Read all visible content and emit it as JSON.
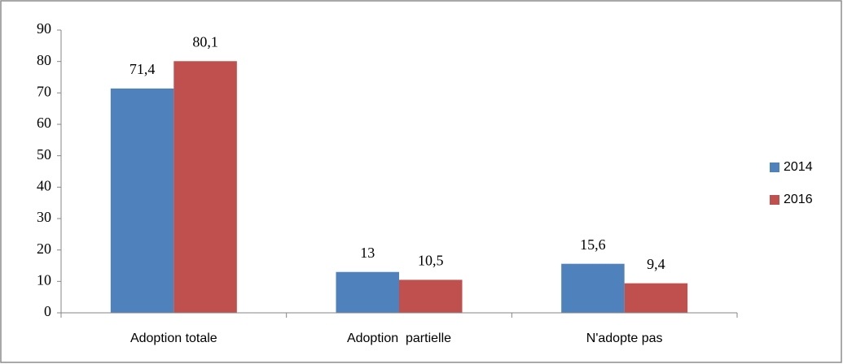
{
  "chart_data": {
    "type": "bar",
    "categories": [
      "Adoption totale",
      "Adoption  partielle",
      "N'adopte pas"
    ],
    "series": [
      {
        "name": "2014",
        "color": "#4f81bd",
        "values": [
          71.4,
          13,
          15.6
        ],
        "value_labels": [
          "71,4",
          "13",
          "15,6"
        ]
      },
      {
        "name": "2016",
        "color": "#c0504d",
        "values": [
          80.1,
          10.5,
          9.4
        ],
        "value_labels": [
          "80,1",
          "10,5",
          "9,4"
        ]
      }
    ],
    "ylim": [
      0,
      90
    ],
    "yticks": [
      0,
      10,
      20,
      30,
      40,
      50,
      60,
      70,
      80,
      90
    ],
    "grid": false,
    "legend": "right"
  }
}
